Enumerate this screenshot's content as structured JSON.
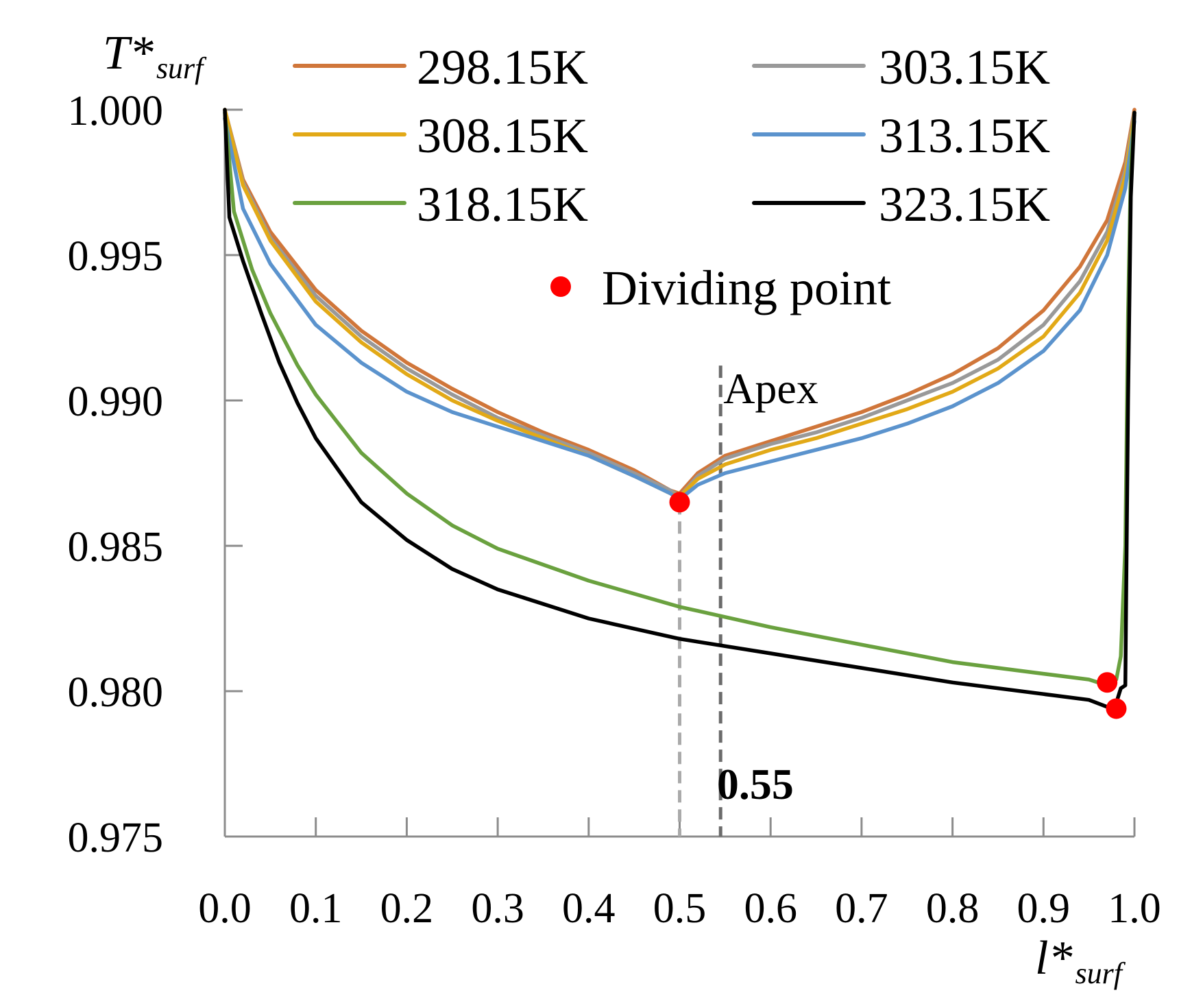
{
  "chart_data": {
    "type": "line",
    "title": "",
    "ylabel": {
      "main": "T*",
      "sub": "surf"
    },
    "xlabel": {
      "main": "l*",
      "sub": "surf"
    },
    "xlim": [
      0,
      1
    ],
    "ylim": [
      0.975,
      1.0
    ],
    "xticks": [
      0.0,
      0.1,
      0.2,
      0.3,
      0.4,
      0.5,
      0.6,
      0.7,
      0.8,
      0.9,
      1.0
    ],
    "xtick_labels": [
      "0.0",
      "0.1",
      "0.2",
      "0.3",
      "0.4",
      "0.5",
      "0.6",
      "0.7",
      "0.8",
      "0.9",
      "1.0"
    ],
    "yticks": [
      0.975,
      0.98,
      0.985,
      0.99,
      0.995,
      1.0
    ],
    "ytick_labels": [
      "0.975",
      "0.980",
      "0.985",
      "0.990",
      "0.995",
      "1.000"
    ],
    "series": [
      {
        "name": "298.15K",
        "color": "#d0763a",
        "x": [
          0.0,
          0.02,
          0.05,
          0.1,
          0.15,
          0.2,
          0.25,
          0.3,
          0.35,
          0.4,
          0.45,
          0.49,
          0.5,
          0.52,
          0.55,
          0.6,
          0.65,
          0.7,
          0.75,
          0.8,
          0.85,
          0.9,
          0.94,
          0.97,
          0.99,
          1.0
        ],
        "y": [
          1.0,
          0.9976,
          0.9958,
          0.9938,
          0.9924,
          0.9913,
          0.9904,
          0.9896,
          0.9889,
          0.9883,
          0.9876,
          0.9869,
          0.9868,
          0.9875,
          0.9881,
          0.9886,
          0.9891,
          0.9896,
          0.9902,
          0.9909,
          0.9918,
          0.9931,
          0.9946,
          0.9962,
          0.9982,
          1.0
        ]
      },
      {
        "name": "303.15K",
        "color": "#999999",
        "x": [
          0.0,
          0.02,
          0.05,
          0.1,
          0.15,
          0.2,
          0.25,
          0.3,
          0.35,
          0.4,
          0.45,
          0.49,
          0.5,
          0.52,
          0.55,
          0.6,
          0.65,
          0.7,
          0.75,
          0.8,
          0.85,
          0.9,
          0.94,
          0.97,
          0.99,
          1.0
        ],
        "y": [
          1.0,
          0.9975,
          0.9956,
          0.9936,
          0.9922,
          0.9911,
          0.9902,
          0.9894,
          0.9888,
          0.9882,
          0.9875,
          0.9869,
          0.9867,
          0.9874,
          0.988,
          0.9885,
          0.9889,
          0.9894,
          0.99,
          0.9906,
          0.9914,
          0.9926,
          0.9941,
          0.9958,
          0.9979,
          0.9999
        ]
      },
      {
        "name": "308.15K",
        "color": "#e2a917",
        "x": [
          0.0,
          0.02,
          0.05,
          0.1,
          0.15,
          0.2,
          0.25,
          0.3,
          0.35,
          0.4,
          0.45,
          0.49,
          0.5,
          0.52,
          0.55,
          0.6,
          0.65,
          0.7,
          0.75,
          0.8,
          0.85,
          0.9,
          0.94,
          0.97,
          0.99,
          1.0
        ],
        "y": [
          1.0,
          0.9974,
          0.9955,
          0.9934,
          0.992,
          0.9909,
          0.99,
          0.9893,
          0.9887,
          0.9881,
          0.9874,
          0.9868,
          0.9867,
          0.9873,
          0.9878,
          0.9883,
          0.9887,
          0.9892,
          0.9897,
          0.9903,
          0.9911,
          0.9922,
          0.9937,
          0.9955,
          0.9977,
          0.9998
        ]
      },
      {
        "name": "313.15K",
        "color": "#5b93cd",
        "x": [
          0.0,
          0.02,
          0.05,
          0.1,
          0.15,
          0.2,
          0.25,
          0.3,
          0.35,
          0.4,
          0.45,
          0.49,
          0.5,
          0.52,
          0.55,
          0.6,
          0.65,
          0.7,
          0.75,
          0.8,
          0.85,
          0.9,
          0.94,
          0.97,
          0.99,
          1.0
        ],
        "y": [
          0.9997,
          0.9966,
          0.9947,
          0.9926,
          0.9913,
          0.9903,
          0.9896,
          0.9891,
          0.9886,
          0.9881,
          0.9874,
          0.9868,
          0.9866,
          0.9871,
          0.9875,
          0.9879,
          0.9883,
          0.9887,
          0.9892,
          0.9898,
          0.9906,
          0.9917,
          0.9931,
          0.995,
          0.9973,
          0.9996
        ]
      },
      {
        "name": "318.15K",
        "color": "#6aa13f",
        "x": [
          0.0,
          0.01,
          0.03,
          0.05,
          0.08,
          0.1,
          0.15,
          0.2,
          0.25,
          0.3,
          0.4,
          0.5,
          0.6,
          0.7,
          0.8,
          0.9,
          0.95,
          0.97,
          0.98,
          0.985,
          0.99,
          0.993,
          0.996,
          1.0
        ],
        "y": [
          0.9999,
          0.9965,
          0.9945,
          0.993,
          0.9912,
          0.9902,
          0.9882,
          0.9868,
          0.9857,
          0.9849,
          0.9838,
          0.9829,
          0.9822,
          0.9816,
          0.981,
          0.9806,
          0.9804,
          0.9802,
          0.9804,
          0.9812,
          0.985,
          0.993,
          0.998,
          0.9999
        ]
      },
      {
        "name": "323.15K",
        "color": "#000000",
        "x": [
          0.0,
          0.005,
          0.02,
          0.04,
          0.06,
          0.08,
          0.1,
          0.15,
          0.2,
          0.25,
          0.3,
          0.4,
          0.5,
          0.6,
          0.7,
          0.8,
          0.9,
          0.95,
          0.975,
          0.98,
          0.985,
          0.99,
          0.993,
          0.996,
          1.0
        ],
        "y": [
          1.0,
          0.9963,
          0.9948,
          0.993,
          0.9913,
          0.9899,
          0.9887,
          0.9865,
          0.9852,
          0.9842,
          0.9835,
          0.9825,
          0.9818,
          0.9813,
          0.9808,
          0.9803,
          0.9799,
          0.9797,
          0.9794,
          0.9796,
          0.9801,
          0.9802,
          0.99,
          0.997,
          0.9999
        ]
      }
    ],
    "dividing_points": [
      {
        "x": 0.5,
        "y": 0.9865
      },
      {
        "x": 0.97,
        "y": 0.9803
      },
      {
        "x": 0.98,
        "y": 0.9794
      }
    ],
    "dividing_point_color": "#ff0000",
    "legend": {
      "placement": "top",
      "marker_label": "Dividing point"
    },
    "annotations": [
      {
        "type": "vline",
        "x": 0.5,
        "y_from": 0.975,
        "y_to": 0.9865,
        "style": "dashed",
        "color": "#aaaaaa"
      },
      {
        "type": "vline",
        "x": 0.545,
        "y_from": 0.975,
        "y_to": 0.9912,
        "style": "dashed",
        "color": "#6b6b6b"
      },
      {
        "type": "text",
        "label": "Apex",
        "x": 0.545,
        "y": 0.9899
      },
      {
        "type": "text",
        "label": "0.55",
        "x": 0.55,
        "y": 0.9763,
        "bold": true
      }
    ]
  }
}
